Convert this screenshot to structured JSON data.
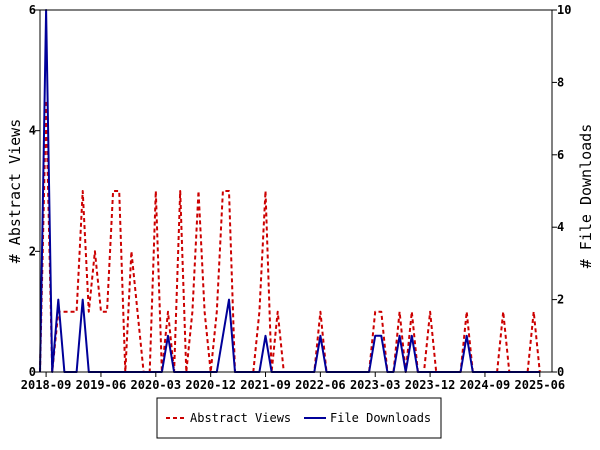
{
  "chart_data": {
    "type": "line",
    "title": "",
    "xlabel": "",
    "ylabel_left": "# Abstract Views",
    "ylabel_right": "# File Downloads",
    "x_start": "2018-08",
    "x_end": "2025-08",
    "x_ticks": [
      "2018-09",
      "2019-06",
      "2020-03",
      "2020-12",
      "2021-09",
      "2022-06",
      "2023-03",
      "2023-12",
      "2024-09",
      "2025-06"
    ],
    "ylim_left": [
      0,
      6
    ],
    "yticks_left": [
      0,
      2,
      4,
      6
    ],
    "ylim_right": [
      0,
      10
    ],
    "yticks_right": [
      0,
      2,
      4,
      6,
      8,
      10
    ],
    "grid": false,
    "legend_placement": "bottom-center",
    "colors": {
      "abstract_views": "#cc0000",
      "file_downloads": "#000099"
    },
    "series": [
      {
        "name": "Abstract Views",
        "axis": "left",
        "style": "dashed",
        "points": [
          [
            "2018-08",
            0
          ],
          [
            "2018-09",
            4.5
          ],
          [
            "2018-10",
            0
          ],
          [
            "2018-11",
            1
          ],
          [
            "2018-12",
            1
          ],
          [
            "2019-01",
            1
          ],
          [
            "2019-02",
            1
          ],
          [
            "2019-03",
            3
          ],
          [
            "2019-04",
            1
          ],
          [
            "2019-05",
            2
          ],
          [
            "2019-06",
            1
          ],
          [
            "2019-07",
            1
          ],
          [
            "2019-08",
            3
          ],
          [
            "2019-09",
            3
          ],
          [
            "2019-10",
            0
          ],
          [
            "2019-11",
            2
          ],
          [
            "2019-12",
            1
          ],
          [
            "2020-01",
            0
          ],
          [
            "2020-02",
            0
          ],
          [
            "2020-03",
            3
          ],
          [
            "2020-04",
            0
          ],
          [
            "2020-05",
            1
          ],
          [
            "2020-06",
            0
          ],
          [
            "2020-07",
            3
          ],
          [
            "2020-08",
            0
          ],
          [
            "2020-09",
            1
          ],
          [
            "2020-10",
            3
          ],
          [
            "2020-11",
            1
          ],
          [
            "2020-12",
            0
          ],
          [
            "2021-01",
            1
          ],
          [
            "2021-02",
            3
          ],
          [
            "2021-03",
            3
          ],
          [
            "2021-04",
            0
          ],
          [
            "2021-05",
            0
          ],
          [
            "2021-06",
            0
          ],
          [
            "2021-07",
            0
          ],
          [
            "2021-08",
            1
          ],
          [
            "2021-09",
            3
          ],
          [
            "2021-10",
            0
          ],
          [
            "2021-11",
            1
          ],
          [
            "2021-12",
            0
          ],
          [
            "2022-01",
            0
          ],
          [
            "2022-02",
            0
          ],
          [
            "2022-03",
            0
          ],
          [
            "2022-04",
            0
          ],
          [
            "2022-05",
            0
          ],
          [
            "2022-06",
            1
          ],
          [
            "2022-07",
            0
          ],
          [
            "2022-08",
            0
          ],
          [
            "2022-09",
            0
          ],
          [
            "2022-10",
            0
          ],
          [
            "2022-11",
            0
          ],
          [
            "2022-12",
            0
          ],
          [
            "2023-01",
            0
          ],
          [
            "2023-02",
            0
          ],
          [
            "2023-03",
            1
          ],
          [
            "2023-04",
            1
          ],
          [
            "2023-05",
            0
          ],
          [
            "2023-06",
            0
          ],
          [
            "2023-07",
            1
          ],
          [
            "2023-08",
            0
          ],
          [
            "2023-09",
            1
          ],
          [
            "2023-10",
            0
          ],
          [
            "2023-11",
            0
          ],
          [
            "2023-12",
            1
          ],
          [
            "2024-01",
            0
          ],
          [
            "2024-02",
            0
          ],
          [
            "2024-03",
            0
          ],
          [
            "2024-04",
            0
          ],
          [
            "2024-05",
            0
          ],
          [
            "2024-06",
            1
          ],
          [
            "2024-07",
            0
          ],
          [
            "2024-08",
            0
          ],
          [
            "2024-09",
            0
          ],
          [
            "2024-10",
            0
          ],
          [
            "2024-11",
            0
          ],
          [
            "2024-12",
            1
          ],
          [
            "2025-01",
            0
          ],
          [
            "2025-02",
            0
          ],
          [
            "2025-03",
            0
          ],
          [
            "2025-04",
            0
          ],
          [
            "2025-05",
            1
          ],
          [
            "2025-06",
            0
          ]
        ]
      },
      {
        "name": "File Downloads",
        "axis": "right",
        "style": "solid",
        "points": [
          [
            "2018-08",
            0
          ],
          [
            "2018-09",
            10
          ],
          [
            "2018-10",
            0
          ],
          [
            "2018-11",
            2
          ],
          [
            "2018-12",
            0
          ],
          [
            "2019-01",
            0
          ],
          [
            "2019-02",
            0
          ],
          [
            "2019-03",
            2
          ],
          [
            "2019-04",
            0
          ],
          [
            "2019-05",
            0
          ],
          [
            "2019-06",
            0
          ],
          [
            "2019-07",
            0
          ],
          [
            "2019-08",
            0
          ],
          [
            "2019-09",
            0
          ],
          [
            "2019-10",
            0
          ],
          [
            "2019-11",
            0
          ],
          [
            "2019-12",
            0
          ],
          [
            "2020-01",
            0
          ],
          [
            "2020-02",
            0
          ],
          [
            "2020-03",
            0
          ],
          [
            "2020-04",
            0
          ],
          [
            "2020-05",
            1
          ],
          [
            "2020-06",
            0
          ],
          [
            "2020-07",
            0
          ],
          [
            "2020-08",
            0
          ],
          [
            "2020-09",
            0
          ],
          [
            "2020-10",
            0
          ],
          [
            "2020-11",
            0
          ],
          [
            "2020-12",
            0
          ],
          [
            "2021-01",
            0
          ],
          [
            "2021-02",
            1
          ],
          [
            "2021-03",
            2
          ],
          [
            "2021-04",
            0
          ],
          [
            "2021-05",
            0
          ],
          [
            "2021-06",
            0
          ],
          [
            "2021-07",
            0
          ],
          [
            "2021-08",
            0
          ],
          [
            "2021-09",
            1
          ],
          [
            "2021-10",
            0
          ],
          [
            "2021-11",
            0
          ],
          [
            "2021-12",
            0
          ],
          [
            "2022-01",
            0
          ],
          [
            "2022-02",
            0
          ],
          [
            "2022-03",
            0
          ],
          [
            "2022-04",
            0
          ],
          [
            "2022-05",
            0
          ],
          [
            "2022-06",
            1
          ],
          [
            "2022-07",
            0
          ],
          [
            "2022-08",
            0
          ],
          [
            "2022-09",
            0
          ],
          [
            "2022-10",
            0
          ],
          [
            "2022-11",
            0
          ],
          [
            "2022-12",
            0
          ],
          [
            "2023-01",
            0
          ],
          [
            "2023-02",
            0
          ],
          [
            "2023-03",
            1
          ],
          [
            "2023-04",
            1
          ],
          [
            "2023-05",
            0
          ],
          [
            "2023-06",
            0
          ],
          [
            "2023-07",
            1
          ],
          [
            "2023-08",
            0
          ],
          [
            "2023-09",
            1
          ],
          [
            "2023-10",
            0
          ],
          [
            "2023-11",
            0
          ],
          [
            "2023-12",
            0
          ],
          [
            "2024-01",
            0
          ],
          [
            "2024-02",
            0
          ],
          [
            "2024-03",
            0
          ],
          [
            "2024-04",
            0
          ],
          [
            "2024-05",
            0
          ],
          [
            "2024-06",
            1
          ],
          [
            "2024-07",
            0
          ],
          [
            "2024-08",
            0
          ],
          [
            "2024-09",
            0
          ],
          [
            "2024-10",
            0
          ],
          [
            "2024-11",
            0
          ],
          [
            "2024-12",
            0
          ],
          [
            "2025-01",
            0
          ],
          [
            "2025-02",
            0
          ],
          [
            "2025-03",
            0
          ],
          [
            "2025-04",
            0
          ],
          [
            "2025-05",
            0
          ],
          [
            "2025-06",
            0
          ]
        ]
      }
    ]
  },
  "legend": {
    "items": [
      {
        "label": "Abstract Views"
      },
      {
        "label": "File Downloads"
      }
    ]
  }
}
